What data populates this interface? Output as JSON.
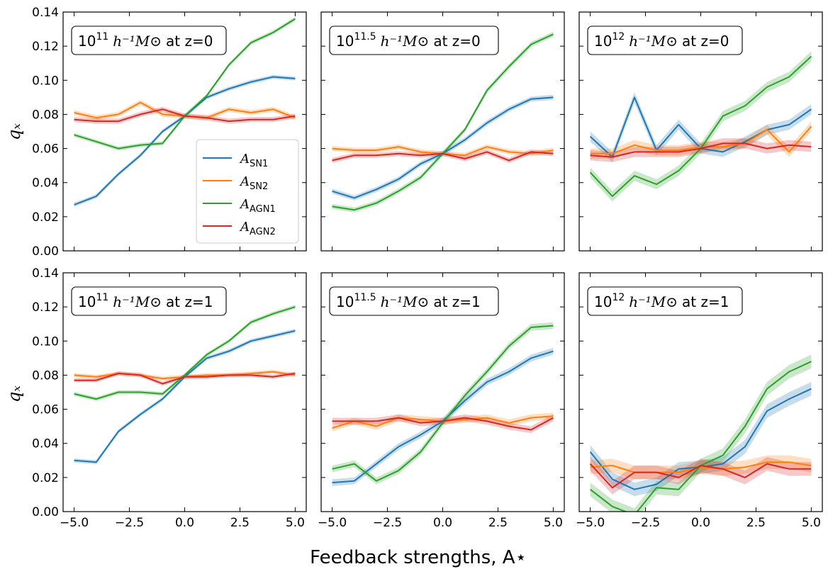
{
  "chart_data": {
    "type": "line",
    "layout": "2x3 grid, shared x and y axes",
    "xlabel": "Feedback strengths, A⋆",
    "ylabel": "qₓ",
    "xlim": [
      -5.5,
      5.5
    ],
    "ylim": [
      0.0,
      0.14
    ],
    "xticks": [
      "−5.0",
      "−2.5",
      "0.0",
      "2.5",
      "5.0"
    ],
    "xtick_values": [
      -5,
      -2.5,
      0,
      2.5,
      5
    ],
    "yticks": [
      "0.00",
      "0.02",
      "0.04",
      "0.06",
      "0.08",
      "0.10",
      "0.12",
      "0.14"
    ],
    "ytick_values": [
      0,
      0.02,
      0.04,
      0.06,
      0.08,
      0.1,
      0.12,
      0.14
    ],
    "x": [
      -5,
      -4,
      -3,
      -2,
      -1,
      0,
      1,
      2,
      3,
      4,
      5
    ],
    "legend": {
      "placement": "lower-right of top-left panel",
      "entries": [
        {
          "main": "A",
          "sub": "SN1",
          "color": "#1f77b4"
        },
        {
          "main": "A",
          "sub": "SN2",
          "color": "#ff7f0e"
        },
        {
          "main": "A",
          "sub": "AGN1",
          "color": "#2ca02c"
        },
        {
          "main": "A",
          "sub": "AGN2",
          "color": "#d62728"
        }
      ]
    },
    "series_colors": {
      "ASN1": "#1f77b4",
      "ASN2": "#ff7f0e",
      "AGN1": "#2ca02c",
      "AGN2": "#d62728"
    },
    "panels": [
      {
        "row": 0,
        "col": 0,
        "label": {
          "base": "10",
          "exp": "11",
          "unit": "h⁻¹M⊙",
          "suffix": "at z=0"
        },
        "series": [
          {
            "name": "ASN1",
            "values": [
              0.027,
              0.032,
              0.045,
              0.056,
              0.07,
              0.079,
              0.09,
              0.095,
              0.099,
              0.102,
              0.101
            ],
            "band": 0.0012
          },
          {
            "name": "ASN2",
            "values": [
              0.081,
              0.078,
              0.08,
              0.087,
              0.08,
              0.079,
              0.078,
              0.083,
              0.081,
              0.083,
              0.078
            ],
            "band": 0.0015
          },
          {
            "name": "AGN1",
            "values": [
              0.068,
              0.064,
              0.06,
              0.062,
              0.063,
              0.079,
              0.091,
              0.109,
              0.122,
              0.128,
              0.136
            ],
            "band": 0.0012
          },
          {
            "name": "AGN2",
            "values": [
              0.077,
              0.076,
              0.076,
              0.08,
              0.083,
              0.079,
              0.078,
              0.076,
              0.077,
              0.077,
              0.079
            ],
            "band": 0.0015
          }
        ]
      },
      {
        "row": 0,
        "col": 1,
        "label": {
          "base": "10",
          "exp": "11.5",
          "unit": "h⁻¹M⊙",
          "suffix": "at z=0"
        },
        "series": [
          {
            "name": "ASN1",
            "values": [
              0.035,
              0.031,
              0.036,
              0.042,
              0.051,
              0.057,
              0.065,
              0.075,
              0.083,
              0.089,
              0.09
            ],
            "band": 0.0015
          },
          {
            "name": "ASN2",
            "values": [
              0.06,
              0.059,
              0.059,
              0.061,
              0.058,
              0.057,
              0.056,
              0.061,
              0.058,
              0.057,
              0.059
            ],
            "band": 0.0015
          },
          {
            "name": "AGN1",
            "values": [
              0.026,
              0.024,
              0.028,
              0.035,
              0.043,
              0.057,
              0.071,
              0.094,
              0.108,
              0.121,
              0.127
            ],
            "band": 0.0015
          },
          {
            "name": "AGN2",
            "values": [
              0.053,
              0.056,
              0.056,
              0.057,
              0.056,
              0.057,
              0.054,
              0.058,
              0.053,
              0.058,
              0.057
            ],
            "band": 0.0015
          }
        ]
      },
      {
        "row": 0,
        "col": 2,
        "label": {
          "base": "10",
          "exp": "12",
          "unit": "h⁻¹M⊙",
          "suffix": "at z=0"
        },
        "series": [
          {
            "name": "ASN1",
            "values": [
              0.067,
              0.055,
              0.09,
              0.059,
              0.074,
              0.06,
              0.058,
              0.064,
              0.071,
              0.074,
              0.083
            ],
            "band": 0.003
          },
          {
            "name": "ASN2",
            "values": [
              0.057,
              0.057,
              0.062,
              0.059,
              0.059,
              0.061,
              0.061,
              0.063,
              0.071,
              0.058,
              0.073
            ],
            "band": 0.003
          },
          {
            "name": "AGN1",
            "values": [
              0.046,
              0.032,
              0.044,
              0.039,
              0.047,
              0.06,
              0.079,
              0.085,
              0.096,
              0.102,
              0.114
            ],
            "band": 0.003
          },
          {
            "name": "AGN2",
            "values": [
              0.056,
              0.055,
              0.058,
              0.058,
              0.058,
              0.06,
              0.063,
              0.063,
              0.06,
              0.062,
              0.061
            ],
            "band": 0.003
          }
        ]
      },
      {
        "row": 1,
        "col": 0,
        "label": {
          "base": "10",
          "exp": "11",
          "unit": "h⁻¹M⊙",
          "suffix": "at z=1"
        },
        "series": [
          {
            "name": "ASN1",
            "values": [
              0.03,
              0.029,
              0.047,
              0.057,
              0.066,
              0.079,
              0.09,
              0.094,
              0.1,
              0.103,
              0.106
            ],
            "band": 0.0012
          },
          {
            "name": "ASN2",
            "values": [
              0.08,
              0.079,
              0.081,
              0.08,
              0.078,
              0.079,
              0.08,
              0.08,
              0.081,
              0.082,
              0.08
            ],
            "band": 0.0012
          },
          {
            "name": "AGN1",
            "values": [
              0.069,
              0.066,
              0.07,
              0.07,
              0.069,
              0.08,
              0.092,
              0.1,
              0.111,
              0.116,
              0.12
            ],
            "band": 0.0012
          },
          {
            "name": "AGN2",
            "values": [
              0.077,
              0.077,
              0.081,
              0.08,
              0.075,
              0.079,
              0.079,
              0.08,
              0.08,
              0.079,
              0.081
            ],
            "band": 0.0012
          }
        ]
      },
      {
        "row": 1,
        "col": 1,
        "label": {
          "base": "10",
          "exp": "11.5",
          "unit": "h⁻¹M⊙",
          "suffix": "at z=1"
        },
        "series": [
          {
            "name": "ASN1",
            "values": [
              0.017,
              0.018,
              0.028,
              0.038,
              0.045,
              0.053,
              0.065,
              0.076,
              0.082,
              0.09,
              0.094
            ],
            "band": 0.002
          },
          {
            "name": "ASN2",
            "values": [
              0.049,
              0.053,
              0.05,
              0.055,
              0.054,
              0.053,
              0.054,
              0.055,
              0.052,
              0.055,
              0.056
            ],
            "band": 0.002
          },
          {
            "name": "AGN1",
            "values": [
              0.025,
              0.028,
              0.018,
              0.024,
              0.035,
              0.052,
              0.068,
              0.082,
              0.097,
              0.108,
              0.109
            ],
            "band": 0.002
          },
          {
            "name": "AGN2",
            "values": [
              0.053,
              0.053,
              0.053,
              0.055,
              0.052,
              0.053,
              0.055,
              0.053,
              0.05,
              0.048,
              0.055
            ],
            "band": 0.002
          }
        ]
      },
      {
        "row": 1,
        "col": 2,
        "label": {
          "base": "10",
          "exp": "12",
          "unit": "h⁻¹M⊙",
          "suffix": "at z=1"
        },
        "series": [
          {
            "name": "ASN1",
            "values": [
              0.035,
              0.019,
              0.013,
              0.016,
              0.025,
              0.026,
              0.028,
              0.038,
              0.059,
              0.066,
              0.072
            ],
            "band": 0.004
          },
          {
            "name": "ASN2",
            "values": [
              0.026,
              0.027,
              0.023,
              0.023,
              0.023,
              0.026,
              0.025,
              0.026,
              0.029,
              0.029,
              0.027
            ],
            "band": 0.004
          },
          {
            "name": "AGN1",
            "values": [
              0.013,
              0.003,
              -0.002,
              0.014,
              0.013,
              0.027,
              0.033,
              0.05,
              0.072,
              0.082,
              0.088
            ],
            "band": 0.004
          },
          {
            "name": "AGN2",
            "values": [
              0.028,
              0.014,
              0.023,
              0.023,
              0.02,
              0.027,
              0.025,
              0.02,
              0.028,
              0.025,
              0.025
            ],
            "band": 0.004
          }
        ]
      }
    ]
  }
}
